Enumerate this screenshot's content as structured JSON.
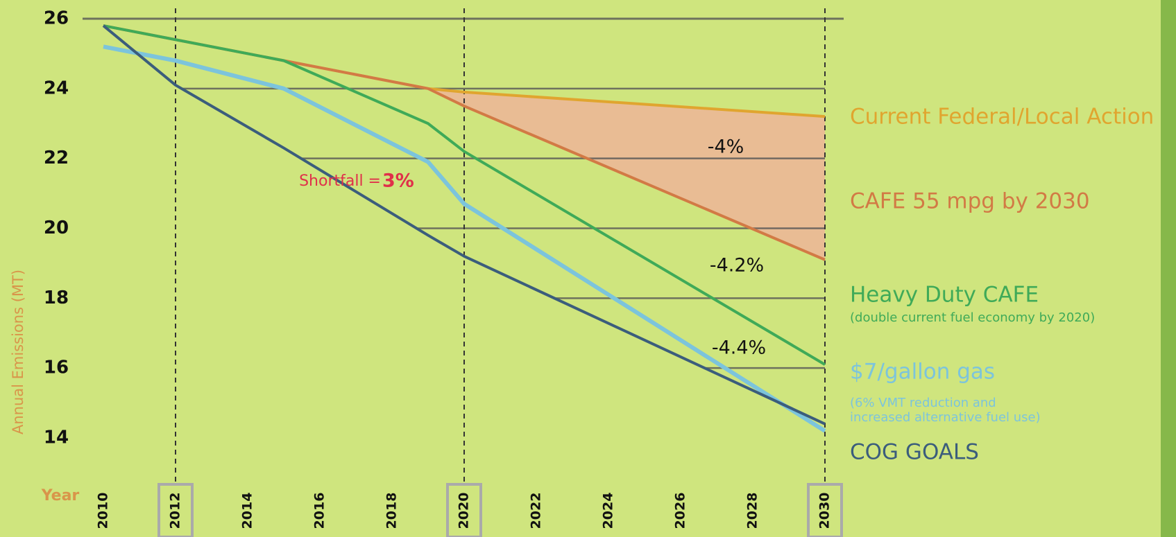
{
  "chart_data": {
    "type": "line",
    "y_label": "Annual Emissions (MT)",
    "x_label": "Year",
    "x": [
      2010,
      2012,
      2015,
      2019,
      2020,
      2030
    ],
    "series": [
      {
        "name": "Current Federal/Local Action",
        "color": "#e0a52f",
        "values": [
          25.8,
          25.4,
          24.8,
          24.0,
          23.9,
          23.2
        ]
      },
      {
        "name": "CAFE 55 mpg by 2030",
        "color": "#d27a45",
        "values": [
          25.8,
          25.4,
          24.8,
          24.0,
          23.5,
          19.1
        ]
      },
      {
        "name": "Heavy Duty  CAFE",
        "color": "#3faa58",
        "note": [
          "(double current fuel economy by 2020)"
        ],
        "values": [
          25.8,
          25.4,
          24.8,
          23.0,
          22.2,
          16.1
        ]
      },
      {
        "name": "$7/gallon gas",
        "color": "#7cc4dc",
        "note": [
          "(6% VMT reduction and",
          "increased alternative fuel use)"
        ],
        "values": [
          25.2,
          24.8,
          24.0,
          21.9,
          20.7,
          14.2
        ]
      },
      {
        "name": "COG GOALS",
        "color": "#3b5d7c",
        "values": [
          25.8,
          24.1,
          22.3,
          19.8,
          19.2,
          14.4
        ]
      }
    ],
    "fill_between": [
      0,
      1
    ],
    "fill_color": "#e9bc94",
    "xlim": [
      2010,
      2030
    ],
    "xticks": [
      2010,
      2012,
      2014,
      2016,
      2018,
      2020,
      2022,
      2024,
      2026,
      2028,
      2030
    ],
    "highlight_x": [
      2012,
      2020,
      2030
    ],
    "ylim": [
      14,
      26
    ],
    "yticks": [
      14,
      16,
      18,
      20,
      22,
      24,
      26
    ],
    "grid": true,
    "annotations": [
      "-4%",
      "-4.2%",
      "-4.4%",
      "Shortfall = ",
      "3%"
    ]
  }
}
